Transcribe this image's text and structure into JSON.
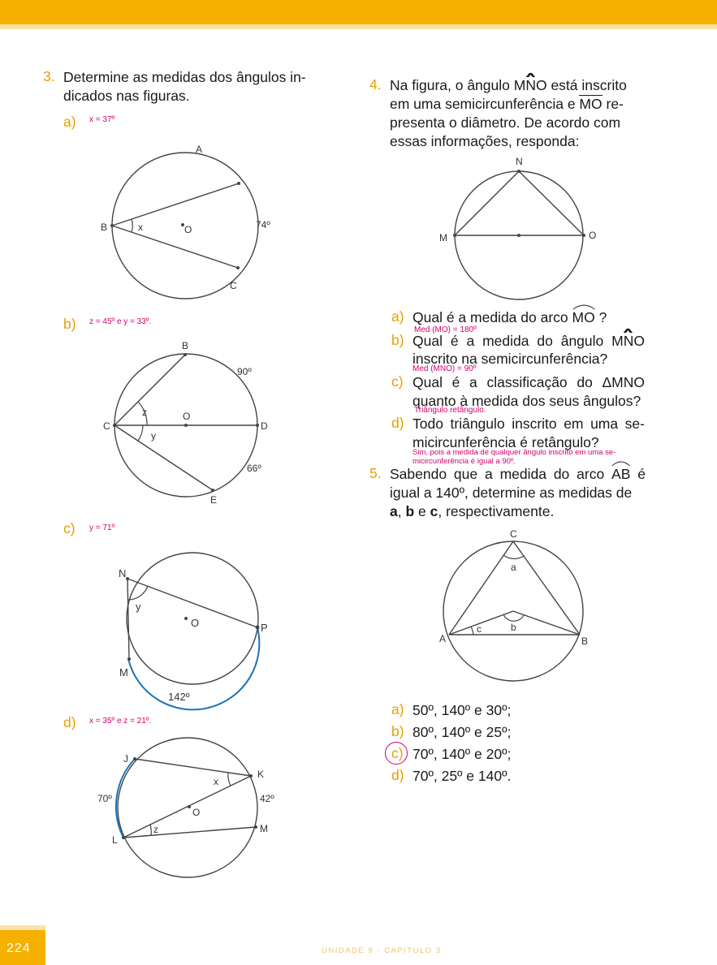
{
  "header": {
    "color": "#f5b000"
  },
  "q3": {
    "number": "3.",
    "line1": "Determine as medidas dos ângulos in-",
    "line2": "dicados nas figuras.",
    "a": {
      "label": "a)",
      "answer": "x = 37º",
      "pts": {
        "A": "A",
        "B": "B",
        "O": "O",
        "C": "C"
      },
      "arc": "74º",
      "angle": "x"
    },
    "b": {
      "label": "b)",
      "answer": "z = 45º e y = 33º.",
      "pts": {
        "B": "B",
        "C": "C",
        "O": "O",
        "D": "D",
        "E": "E"
      },
      "arc1": "90º",
      "arc2": "66º",
      "ang1": "z",
      "ang2": "y"
    },
    "c": {
      "label": "c)",
      "answer": "y = 71º",
      "pts": {
        "N": "N",
        "O": "O",
        "P": "P",
        "M": "M"
      },
      "arc": "142º",
      "angle": "y",
      "arc_color": "#1a73b8"
    },
    "d": {
      "label": "d)",
      "answer": "x = 35º e z = 21º.",
      "pts": {
        "J": "J",
        "K": "K",
        "O": "O",
        "L": "L",
        "M": "M"
      },
      "arc1": "70º",
      "arc2": "42º",
      "ang1": "x",
      "ang2": "z"
    }
  },
  "q4": {
    "number": "4.",
    "l1a": "Na figura, o ângulo ",
    "l1b": "MNO",
    "l1c": " está inscrito",
    "l2a": "em uma semicircunferência e ",
    "l2b": "MO",
    "l2c": " re-",
    "l3": "presenta o diâmetro. De acordo com",
    "l4": "essas informações, responda:",
    "pts": {
      "N": "N",
      "M": "M",
      "O": "O"
    },
    "a": {
      "label": "a)",
      "text1": "Qual é a medida do arco ",
      "arc": "MO",
      "text2": " ?",
      "answer": "Med (MO) = 180º"
    },
    "b": {
      "label": "b)",
      "line1a": "Qual é a medida do ângulo ",
      "line1b": "MNO",
      "line2": "inscrito na semicircunferência?",
      "answer": "Med (MNO) = 90º"
    },
    "c": {
      "label": "c)",
      "line1": "Qual é a classificação do ΔMNO",
      "line2": "quanto à medida dos seus ângulos?",
      "answer": "Triângulo retângulo."
    },
    "d": {
      "label": "d)",
      "line1": "Todo triângulo inscrito em uma se-",
      "line2": "micircunferência é retângulo?",
      "answer1": "Sim, pois a medida de qualquer ângulo inscrito em uma se-",
      "answer2": "micircunferência é igual a 90º."
    }
  },
  "q5": {
    "number": "5.",
    "l1a": "Sabendo que a medida do arco ",
    "l1b": "AB",
    "l1c": " é",
    "l2": "igual a 140º, determine as medidas de",
    "l3a": "a",
    "l3b": ", ",
    "l3c": "b",
    "l3d": " e ",
    "l3e": "c",
    "l3f": ", respectivamente.",
    "pts": {
      "C": "C",
      "A": "A",
      "B": "B",
      "a": "a",
      "b": "b",
      "c": "c"
    },
    "options": [
      {
        "label": "a)",
        "text": "50º, 140º e 30º;"
      },
      {
        "label": "b)",
        "text": "80º, 140º e 25º;"
      },
      {
        "label": "c)",
        "text": "70º, 140º e 20º;"
      },
      {
        "label": "d)",
        "text": "70º, 25º e 140º."
      }
    ],
    "selected": "c)"
  },
  "footer": {
    "page": "224",
    "chapter": "UNIDADE 9  -  CAPÍTULO 3"
  }
}
